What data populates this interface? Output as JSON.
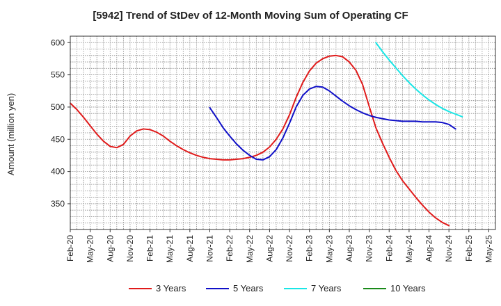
{
  "chart_data": {
    "type": "line",
    "title": "[5942]  Trend of StDev of 12-Month Moving Sum of Operating CF",
    "xlabel": "",
    "ylabel": "Amount (million yen)",
    "ylim": [
      310,
      610
    ],
    "y_ticks": [
      350,
      400,
      450,
      500,
      550,
      600
    ],
    "x_ticks": [
      "Feb-20",
      "May-20",
      "Aug-20",
      "Nov-20",
      "Feb-21",
      "May-21",
      "Aug-21",
      "Nov-21",
      "Feb-22",
      "May-22",
      "Aug-22",
      "Nov-22",
      "Feb-23",
      "May-23",
      "Aug-23",
      "Nov-23",
      "Feb-24",
      "May-24",
      "Aug-24",
      "Nov-24",
      "Feb-25",
      "May-25"
    ],
    "grid": true,
    "legend_position": "bottom",
    "series": [
      {
        "name": "3 Years",
        "color": "#e01b1b",
        "start_index": 0,
        "values": [
          506,
          496,
          484,
          471,
          458,
          447,
          439,
          437,
          442,
          455,
          463,
          466,
          465,
          461,
          455,
          447,
          440,
          434,
          429,
          425,
          422,
          420,
          419,
          418,
          418,
          419,
          420,
          422,
          425,
          430,
          438,
          450,
          466,
          488,
          515,
          538,
          556,
          568,
          575,
          579,
          580,
          578,
          570,
          557,
          535,
          501,
          468,
          444,
          422,
          402,
          386,
          373,
          360,
          348,
          337,
          328,
          321,
          316
        ]
      },
      {
        "name": "5 Years",
        "color": "#1010c8",
        "start_index": 21,
        "values": [
          499,
          484,
          468,
          455,
          443,
          433,
          425,
          419,
          418,
          423,
          434,
          452,
          475,
          500,
          518,
          528,
          532,
          531,
          525,
          517,
          509,
          502,
          496,
          491,
          487,
          484,
          482,
          480,
          479,
          478,
          478,
          478,
          477,
          477,
          477,
          476,
          473,
          466
        ]
      },
      {
        "name": "7 Years",
        "color": "#19e6e6",
        "start_index": 46,
        "values": [
          600,
          586,
          573,
          561,
          549,
          538,
          528,
          519,
          511,
          504,
          498,
          493,
          489,
          485
        ]
      },
      {
        "name": "10 Years",
        "color": "#1a8a1a",
        "start_index": 0,
        "values": []
      }
    ]
  }
}
